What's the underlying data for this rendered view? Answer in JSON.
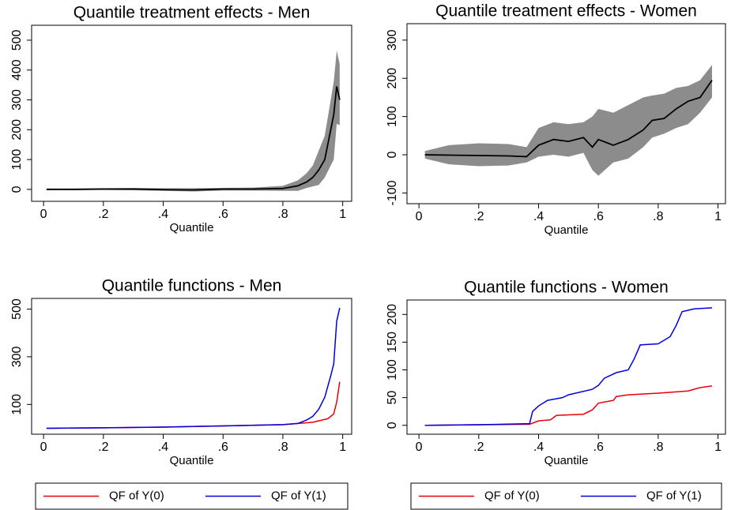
{
  "chart_data": [
    {
      "type": "line",
      "title": "Quantile treatment effects - Men",
      "xlabel": "Quantile",
      "x": [
        0.01,
        0.1,
        0.2,
        0.3,
        0.4,
        0.5,
        0.6,
        0.7,
        0.8,
        0.85,
        0.88,
        0.9,
        0.92,
        0.94,
        0.96,
        0.97,
        0.98,
        0.99
      ],
      "values": [
        0,
        0,
        1,
        1,
        -1,
        -2,
        1,
        1,
        3,
        12,
        25,
        40,
        65,
        100,
        200,
        250,
        345,
        300
      ],
      "lower": [
        -3,
        -3,
        -2,
        -3,
        -5,
        -7,
        -4,
        -4,
        -5,
        -5,
        5,
        10,
        15,
        40,
        80,
        100,
        220,
        215
      ],
      "upper": [
        3,
        3,
        4,
        5,
        4,
        4,
        5,
        6,
        12,
        30,
        55,
        80,
        130,
        180,
        300,
        360,
        465,
        420
      ],
      "color": "#000000",
      "band_color": "#8c8c8c",
      "xlim": [
        -0.04,
        1.03
      ],
      "ylim": [
        -40,
        550
      ],
      "xticks": [
        0,
        {
          "value": 0.2,
          "label": ".2"
        },
        {
          "value": 0.4,
          "label": ".4"
        },
        {
          "value": 0.6,
          "label": ".6"
        },
        {
          "value": 0.8,
          "label": ".8"
        },
        1
      ],
      "yticks": [
        0,
        100,
        200,
        300,
        400,
        500
      ]
    },
    {
      "type": "line",
      "title": "Quantile treatment effects - Women",
      "xlabel": "Quantile",
      "x": [
        0.02,
        0.1,
        0.2,
        0.3,
        0.36,
        0.4,
        0.45,
        0.5,
        0.55,
        0.58,
        0.6,
        0.65,
        0.7,
        0.75,
        0.78,
        0.82,
        0.86,
        0.9,
        0.94,
        0.98
      ],
      "values": [
        0,
        -1,
        -2,
        -3,
        -5,
        25,
        40,
        35,
        45,
        20,
        40,
        25,
        40,
        65,
        90,
        95,
        120,
        140,
        150,
        195
      ],
      "lower": [
        -10,
        -25,
        -30,
        -28,
        -20,
        -5,
        0,
        -5,
        5,
        -40,
        -55,
        -20,
        -10,
        20,
        45,
        55,
        70,
        80,
        110,
        150
      ],
      "upper": [
        10,
        25,
        30,
        28,
        20,
        70,
        85,
        80,
        85,
        100,
        120,
        110,
        130,
        150,
        155,
        160,
        175,
        180,
        195,
        235
      ],
      "color": "#000000",
      "band_color": "#8c8c8c",
      "xlim": [
        -0.04,
        1.025
      ],
      "ylim": [
        -128,
        343
      ],
      "xticks": [
        0,
        {
          "value": 0.2,
          "label": ".2"
        },
        {
          "value": 0.4,
          "label": ".4"
        },
        {
          "value": 0.6,
          "label": ".6"
        },
        {
          "value": 0.8,
          "label": ".8"
        },
        1
      ],
      "yticks": [
        -100,
        0,
        100,
        200,
        300
      ]
    },
    {
      "type": "line",
      "title": "Quantile functions - Men",
      "xlabel": "Quantile",
      "legend": true,
      "series": [
        {
          "name": "QF of Y(0)",
          "color": "#e8000b",
          "x": [
            0.01,
            0.2,
            0.4,
            0.6,
            0.8,
            0.9,
            0.95,
            0.97,
            0.98,
            0.99
          ],
          "values": [
            0,
            2,
            5,
            10,
            15,
            25,
            40,
            60,
            110,
            195
          ]
        },
        {
          "name": "QF of Y(1)",
          "color": "#0000dd",
          "x": [
            0.01,
            0.2,
            0.4,
            0.6,
            0.8,
            0.85,
            0.88,
            0.9,
            0.92,
            0.94,
            0.96,
            0.97,
            0.98,
            0.99
          ],
          "values": [
            0,
            2,
            5,
            10,
            15,
            20,
            35,
            50,
            80,
            130,
            220,
            270,
            450,
            505
          ]
        }
      ],
      "xlim": [
        -0.04,
        1.03
      ],
      "ylim": [
        -25,
        545
      ],
      "xticks": [
        0,
        {
          "value": 0.2,
          "label": ".2"
        },
        {
          "value": 0.4,
          "label": ".4"
        },
        {
          "value": 0.6,
          "label": ".6"
        },
        {
          "value": 0.8,
          "label": ".8"
        },
        1
      ],
      "yticks": [
        100,
        300,
        500
      ]
    },
    {
      "type": "line",
      "title": "Quantile functions - Women",
      "xlabel": "Quantile",
      "legend": true,
      "series": [
        {
          "name": "QF of Y(0)",
          "color": "#e8000b",
          "x": [
            0.02,
            0.2,
            0.37,
            0.4,
            0.44,
            0.46,
            0.55,
            0.58,
            0.6,
            0.65,
            0.66,
            0.7,
            0.8,
            0.9,
            0.94,
            0.98
          ],
          "values": [
            0,
            1,
            2,
            8,
            10,
            18,
            20,
            28,
            40,
            45,
            52,
            55,
            58,
            62,
            68,
            71
          ]
        },
        {
          "name": "QF of Y(1)",
          "color": "#0000dd",
          "x": [
            0.02,
            0.2,
            0.37,
            0.38,
            0.4,
            0.43,
            0.48,
            0.5,
            0.58,
            0.6,
            0.62,
            0.66,
            0.7,
            0.72,
            0.74,
            0.8,
            0.84,
            0.86,
            0.88,
            0.92,
            0.98
          ],
          "values": [
            0,
            1,
            3,
            25,
            35,
            45,
            50,
            55,
            65,
            72,
            85,
            95,
            100,
            120,
            145,
            147,
            160,
            180,
            205,
            210,
            212
          ]
        }
      ],
      "xlim": [
        -0.04,
        1.025
      ],
      "ylim": [
        -16,
        226
      ],
      "xticks": [
        0,
        {
          "value": 0.2,
          "label": ".2"
        },
        {
          "value": 0.4,
          "label": ".4"
        },
        {
          "value": 0.6,
          "label": ".6"
        },
        {
          "value": 0.8,
          "label": ".8"
        },
        1
      ],
      "yticks": [
        0,
        50,
        100,
        150,
        200
      ]
    }
  ]
}
